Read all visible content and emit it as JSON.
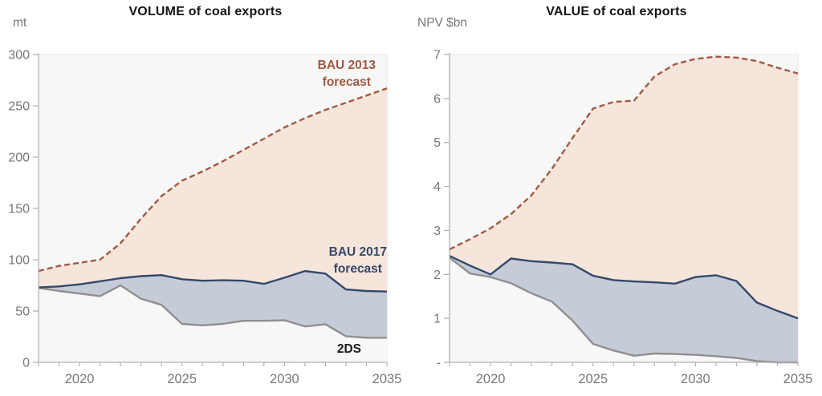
{
  "styles": {
    "page_background": "#ffffff",
    "plot_background": "#f7f7f7",
    "plot_border_color": "#e4e4e4",
    "axis_color": "#b3b3b3",
    "tick_text_color": "#767676",
    "title_color": "#141414"
  },
  "chart_data": [
    {
      "type": "area",
      "title": "VOLUME of coal exports",
      "unit_label": "mt",
      "x": [
        2018,
        2019,
        2020,
        2021,
        2022,
        2023,
        2024,
        2025,
        2026,
        2027,
        2028,
        2029,
        2030,
        2031,
        2032,
        2033,
        2034,
        2035
      ],
      "xticks": [
        2020,
        2025,
        2030,
        2035
      ],
      "ylim": [
        0,
        300
      ],
      "ytick_values": [
        0,
        50,
        100,
        150,
        200,
        250,
        300
      ],
      "ytick_labels": [
        "0",
        "50",
        "100",
        "150",
        "200",
        "250",
        "300"
      ],
      "series": [
        {
          "name": "BAU 2013 forecast",
          "dash": true,
          "line_color": "#a05a42",
          "fill_color": "#f6e5da",
          "values": [
            89,
            94,
            97,
            100,
            116,
            140,
            162,
            177,
            186,
            196,
            207,
            218,
            229,
            238,
            246,
            253,
            260,
            267
          ]
        },
        {
          "name": "BAU 2017 forecast",
          "dash": false,
          "line_color": "#33496b",
          "fill_color": "#c6cbd8",
          "values": [
            73,
            74,
            76,
            79,
            82,
            84,
            85,
            81,
            79.5,
            80,
            79.5,
            76.5,
            82.5,
            89,
            86.5,
            71,
            69.5,
            69
          ]
        },
        {
          "name": "2DS",
          "dash": false,
          "line_color": "#8f8f8f",
          "fill_color": "#f7f7f7",
          "values": [
            72.5,
            69.5,
            67,
            64.5,
            75,
            62,
            56,
            37.5,
            36,
            37.5,
            40.5,
            40.5,
            41,
            35,
            37,
            25.5,
            24,
            24
          ]
        }
      ],
      "annotations": [
        {
          "lines": [
            "BAU 2013",
            "forecast"
          ],
          "color": "#a05a42"
        },
        {
          "lines": [
            "BAU 2017",
            "forecast"
          ],
          "color": "#33496b"
        },
        {
          "lines": [
            "2DS"
          ],
          "color": "#1a1a1a"
        }
      ]
    },
    {
      "type": "area",
      "title": "VALUE of coal exports",
      "unit_label": "NPV $bn",
      "x": [
        2018,
        2019,
        2020,
        2021,
        2022,
        2023,
        2024,
        2025,
        2026,
        2027,
        2028,
        2029,
        2030,
        2031,
        2032,
        2033,
        2034,
        2035
      ],
      "xticks": [
        2020,
        2025,
        2030,
        2035
      ],
      "ylim": [
        0,
        7
      ],
      "ytick_values": [
        0,
        1,
        2,
        3,
        4,
        5,
        6,
        7
      ],
      "ytick_labels": [
        "-",
        "1",
        "2",
        "3",
        "4",
        "5",
        "6",
        "7"
      ],
      "series": [
        {
          "name": "BAU 2013 forecast",
          "dash": true,
          "line_color": "#a05a42",
          "fill_color": "#f6e5da",
          "values": [
            2.57,
            2.8,
            3.05,
            3.37,
            3.8,
            4.4,
            5.1,
            5.77,
            5.92,
            5.95,
            6.5,
            6.78,
            6.9,
            6.95,
            6.93,
            6.85,
            6.7,
            6.57
          ]
        },
        {
          "name": "BAU 2017 forecast",
          "dash": false,
          "line_color": "#33496b",
          "fill_color": "#c6cbd8",
          "values": [
            2.42,
            2.2,
            2.0,
            2.36,
            2.3,
            2.27,
            2.23,
            1.97,
            1.87,
            1.84,
            1.82,
            1.79,
            1.94,
            1.98,
            1.85,
            1.36,
            1.17,
            1.0
          ]
        },
        {
          "name": "2DS",
          "dash": false,
          "line_color": "#8f8f8f",
          "fill_color": "#f7f7f7",
          "values": [
            2.38,
            2.02,
            1.94,
            1.8,
            1.57,
            1.38,
            0.95,
            0.42,
            0.27,
            0.15,
            0.2,
            0.19,
            0.17,
            0.14,
            0.1,
            0.03,
            0,
            0
          ]
        }
      ],
      "annotations": []
    }
  ]
}
